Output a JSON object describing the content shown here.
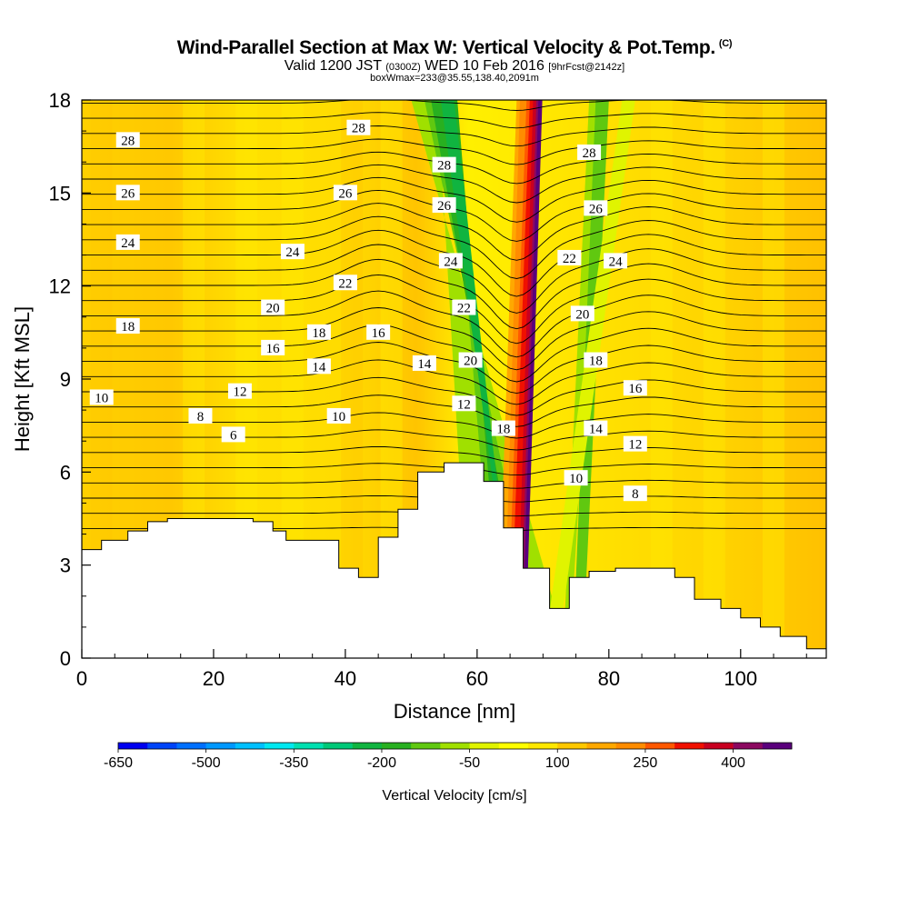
{
  "header": {
    "title": "Wind-Parallel Section at Max W: Vertical Velocity & Pot.Temp.",
    "title_tag": "(C)",
    "subtitle_main": "Valid 1200 JST",
    "subtitle_utc": "(0300Z)",
    "subtitle_date": "WED 10 Feb 2016",
    "subtitle_fcst": "[9hrFcst@2142z]",
    "box_info": "boxWmax=233@35.55,138.40,2091m"
  },
  "chart_data": {
    "type": "heatmap",
    "title": "Wind-Parallel Section at Max W: Vertical Velocity & Pot.Temp.",
    "xlabel": "Distance [nm]",
    "ylabel": "Height [Kft MSL]",
    "xlim": [
      0,
      113
    ],
    "ylim": [
      0,
      18
    ],
    "x_ticks": [
      0,
      20,
      40,
      60,
      80,
      100
    ],
    "y_ticks": [
      0,
      3,
      6,
      9,
      12,
      15,
      18
    ],
    "colorbar": {
      "label": "Vertical Velocity [cm/s]",
      "tick_labels": [
        "-650",
        "-500",
        "-350",
        "-200",
        "-50",
        "100",
        "250",
        "400"
      ],
      "levels": [
        -650,
        -600,
        -550,
        -500,
        -450,
        -400,
        -350,
        -300,
        -250,
        -200,
        -150,
        -100,
        -50,
        0,
        50,
        100,
        150,
        200,
        250,
        300,
        350,
        400,
        450
      ],
      "colors": [
        "#0000f0",
        "#0044f8",
        "#0070ff",
        "#0098ff",
        "#00c0ff",
        "#00e8f0",
        "#00e0b0",
        "#00c878",
        "#10b440",
        "#28b020",
        "#60c810",
        "#a0e000",
        "#e0f400",
        "#ffff00",
        "#ffe800",
        "#ffc800",
        "#ffa800",
        "#ff8c00",
        "#ff5800",
        "#f01000",
        "#c80020",
        "#8c0860",
        "#5a007c"
      ]
    },
    "terrain": [
      [
        0,
        3.5
      ],
      [
        3,
        3.5
      ],
      [
        3,
        3.8
      ],
      [
        7,
        3.8
      ],
      [
        7,
        4.1
      ],
      [
        10,
        4.1
      ],
      [
        10,
        4.4
      ],
      [
        13,
        4.4
      ],
      [
        13,
        4.5
      ],
      [
        26,
        4.5
      ],
      [
        26,
        4.4
      ],
      [
        29,
        4.4
      ],
      [
        29,
        4.1
      ],
      [
        31,
        4.1
      ],
      [
        31,
        3.8
      ],
      [
        39,
        3.8
      ],
      [
        39,
        2.9
      ],
      [
        42,
        2.9
      ],
      [
        42,
        2.6
      ],
      [
        45,
        2.6
      ],
      [
        45,
        3.9
      ],
      [
        48,
        3.9
      ],
      [
        48,
        4.8
      ],
      [
        51,
        4.8
      ],
      [
        51,
        6.0
      ],
      [
        55,
        6.0
      ],
      [
        55,
        6.3
      ],
      [
        61,
        6.3
      ],
      [
        61,
        5.7
      ],
      [
        64,
        5.7
      ],
      [
        64,
        4.2
      ],
      [
        67,
        4.2
      ],
      [
        67,
        2.9
      ],
      [
        71,
        2.9
      ],
      [
        71,
        1.6
      ],
      [
        74,
        1.6
      ],
      [
        74,
        2.6
      ],
      [
        77,
        2.6
      ],
      [
        77,
        2.8
      ],
      [
        81,
        2.8
      ],
      [
        81,
        2.9
      ],
      [
        90,
        2.9
      ],
      [
        90,
        2.6
      ],
      [
        93,
        2.6
      ],
      [
        93,
        1.9
      ],
      [
        97,
        1.9
      ],
      [
        97,
        1.6
      ],
      [
        100,
        1.6
      ],
      [
        100,
        1.3
      ],
      [
        103,
        1.3
      ],
      [
        103,
        1.0
      ],
      [
        106,
        1.0
      ],
      [
        106,
        0.7
      ],
      [
        110,
        0.7
      ],
      [
        110,
        0.3
      ],
      [
        113,
        0.3
      ]
    ],
    "theta_contours": [
      {
        "level": 6,
        "labels": [
          [
            23,
            7.2
          ]
        ]
      },
      {
        "level": 8,
        "labels": [
          [
            18,
            7.8
          ],
          [
            84,
            5.3
          ]
        ]
      },
      {
        "level": 10,
        "labels": [
          [
            3,
            8.4
          ],
          [
            39,
            7.8
          ],
          [
            75,
            5.8
          ]
        ]
      },
      {
        "level": 12,
        "labels": [
          [
            24,
            8.6
          ],
          [
            58,
            8.2
          ],
          [
            84,
            6.9
          ]
        ]
      },
      {
        "level": 14,
        "labels": [
          [
            36,
            9.4
          ],
          [
            52,
            9.5
          ],
          [
            78,
            7.4
          ]
        ]
      },
      {
        "level": 16,
        "labels": [
          [
            29,
            10.0
          ],
          [
            45,
            10.5
          ],
          [
            84,
            8.7
          ]
        ]
      },
      {
        "level": 18,
        "labels": [
          [
            7,
            10.7
          ],
          [
            36,
            10.5
          ],
          [
            64,
            7.4
          ],
          [
            78,
            9.6
          ]
        ]
      },
      {
        "level": 20,
        "labels": [
          [
            29,
            11.3
          ],
          [
            59,
            9.6
          ],
          [
            76,
            11.1
          ]
        ]
      },
      {
        "level": 22,
        "labels": [
          [
            40,
            12.1
          ],
          [
            58,
            11.3
          ],
          [
            74,
            12.9
          ]
        ]
      },
      {
        "level": 24,
        "labels": [
          [
            7,
            13.4
          ],
          [
            32,
            13.1
          ],
          [
            56,
            12.8
          ],
          [
            81,
            12.8
          ]
        ]
      },
      {
        "level": 26,
        "labels": [
          [
            7,
            15.0
          ],
          [
            40,
            15.0
          ],
          [
            55,
            14.6
          ],
          [
            78,
            14.5
          ]
        ]
      },
      {
        "level": 28,
        "labels": [
          [
            7,
            16.7
          ],
          [
            42,
            17.1
          ],
          [
            55,
            15.9
          ],
          [
            77,
            16.3
          ]
        ]
      }
    ]
  }
}
